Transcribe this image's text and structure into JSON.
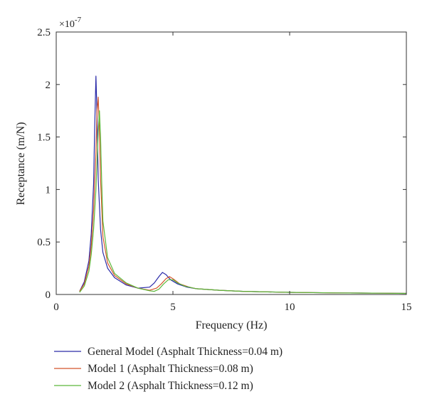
{
  "chart_data": {
    "type": "line",
    "title": "",
    "xlabel": "Frequency (Hz)",
    "ylabel": "Receptance (m/N)",
    "y_multiplier_label": "×10",
    "y_multiplier_exponent": "-7",
    "xlim": [
      0,
      15
    ],
    "ylim": [
      0,
      2.5
    ],
    "xticks": [
      0,
      5,
      10,
      15
    ],
    "xtick_labels": [
      "0",
      "5",
      "10",
      "15"
    ],
    "yticks": [
      0,
      0.5,
      1,
      1.5,
      2,
      2.5
    ],
    "ytick_labels": [
      "0",
      "0.5",
      "1",
      "1.5",
      "2",
      "2.5"
    ],
    "grid": false,
    "legend_position": "bottom",
    "series": [
      {
        "name": "General Model (Asphalt Thickness=0.04 m)",
        "color": "#2a2aa8",
        "x": [
          1.0,
          1.2,
          1.4,
          1.5,
          1.6,
          1.65,
          1.7,
          1.75,
          1.8,
          1.9,
          2.0,
          2.2,
          2.5,
          3.0,
          3.5,
          4.0,
          4.2,
          4.4,
          4.55,
          4.7,
          4.9,
          5.2,
          5.6,
          6.0,
          7.0,
          8.0,
          10.0,
          12.0,
          14.0,
          15.0
        ],
        "y": [
          0.03,
          0.12,
          0.32,
          0.58,
          1.05,
          1.6,
          2.08,
          1.7,
          1.1,
          0.62,
          0.4,
          0.25,
          0.16,
          0.09,
          0.06,
          0.07,
          0.11,
          0.17,
          0.21,
          0.19,
          0.14,
          0.1,
          0.07,
          0.055,
          0.04,
          0.03,
          0.02,
          0.015,
          0.012,
          0.01
        ]
      },
      {
        "name": "Model 1 (Asphalt Thickness=0.08 m)",
        "color": "#d4552a",
        "x": [
          1.0,
          1.2,
          1.4,
          1.5,
          1.6,
          1.7,
          1.75,
          1.8,
          1.85,
          1.9,
          2.0,
          2.2,
          2.5,
          3.0,
          3.5,
          4.0,
          4.3,
          4.5,
          4.7,
          4.85,
          5.0,
          5.3,
          5.7,
          6.0,
          7.0,
          8.0,
          10.0,
          12.0,
          14.0,
          15.0
        ],
        "y": [
          0.03,
          0.1,
          0.27,
          0.46,
          0.8,
          1.35,
          1.75,
          1.88,
          1.55,
          1.1,
          0.55,
          0.3,
          0.18,
          0.1,
          0.06,
          0.04,
          0.06,
          0.1,
          0.15,
          0.17,
          0.15,
          0.1,
          0.07,
          0.055,
          0.04,
          0.03,
          0.02,
          0.015,
          0.012,
          0.01
        ]
      },
      {
        "name": "Model 2 (Asphalt Thickness=0.12 m)",
        "color": "#5cb83a",
        "x": [
          1.0,
          1.2,
          1.4,
          1.5,
          1.6,
          1.7,
          1.8,
          1.85,
          1.9,
          1.95,
          2.0,
          2.2,
          2.5,
          3.0,
          3.5,
          4.0,
          4.2,
          4.4,
          4.6,
          4.8,
          5.0,
          5.2,
          5.5,
          6.0,
          7.0,
          8.0,
          10.0,
          12.0,
          14.0,
          15.0
        ],
        "y": [
          0.02,
          0.08,
          0.22,
          0.38,
          0.62,
          1.0,
          1.55,
          1.75,
          1.5,
          1.05,
          0.7,
          0.35,
          0.2,
          0.11,
          0.06,
          0.035,
          0.03,
          0.05,
          0.1,
          0.14,
          0.14,
          0.11,
          0.08,
          0.055,
          0.04,
          0.03,
          0.02,
          0.015,
          0.012,
          0.01
        ]
      }
    ]
  }
}
